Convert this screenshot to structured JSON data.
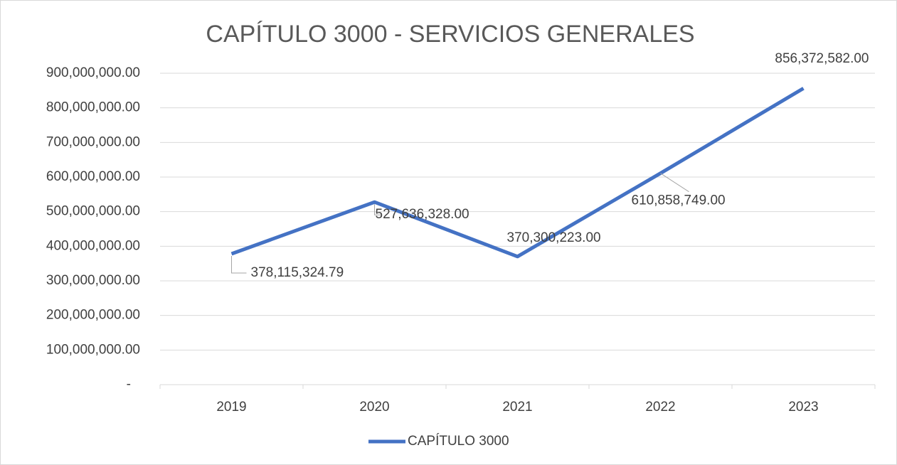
{
  "chart_data": {
    "type": "line",
    "title": "CAPÍTULO 3000 - SERVICIOS GENERALES",
    "categories": [
      "2019",
      "2020",
      "2021",
      "2022",
      "2023"
    ],
    "series": [
      {
        "name": "CAPÍTULO 3000",
        "color": "#4472c4",
        "values": [
          378115324.79,
          527636328,
          370300223,
          610858749,
          856372582
        ],
        "value_labels": [
          "378,115,324.79",
          "527,636,328.00",
          "370,300,223.00",
          "610,858,749.00",
          "856,372,582.00"
        ]
      }
    ],
    "ylim": [
      0,
      900000000
    ],
    "yticks": [
      {
        "value": 0,
        "label": "-"
      },
      {
        "value": 100000000,
        "label": "100,000,000.00"
      },
      {
        "value": 200000000,
        "label": "200,000,000.00"
      },
      {
        "value": 300000000,
        "label": "300,000,000.00"
      },
      {
        "value": 400000000,
        "label": "400,000,000.00"
      },
      {
        "value": 500000000,
        "label": "500,000,000.00"
      },
      {
        "value": 600000000,
        "label": "600,000,000.00"
      },
      {
        "value": 700000000,
        "label": "700,000,000.00"
      },
      {
        "value": 800000000,
        "label": "800,000,000.00"
      },
      {
        "value": 900000000,
        "label": "900,000,000.00"
      }
    ],
    "grid": true,
    "legend": "bottom"
  }
}
